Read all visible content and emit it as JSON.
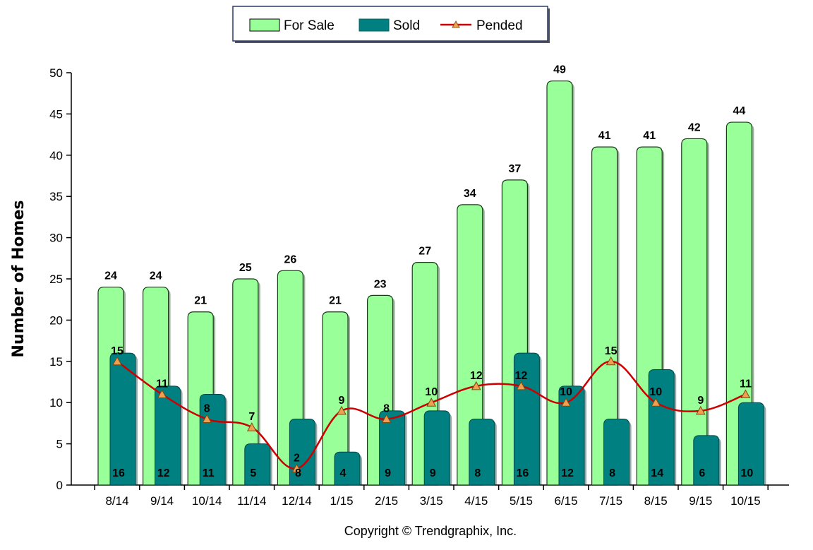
{
  "chart_data": {
    "type": "bar",
    "ylabel": "Number of Homes",
    "xlabel": "",
    "ylim": [
      0,
      50
    ],
    "yticks": [
      0,
      5,
      10,
      15,
      20,
      25,
      30,
      35,
      40,
      45,
      50
    ],
    "categories": [
      "8/14",
      "9/14",
      "10/14",
      "11/14",
      "12/14",
      "1/15",
      "2/15",
      "3/15",
      "4/15",
      "5/15",
      "6/15",
      "7/15",
      "8/15",
      "9/15",
      "10/15"
    ],
    "series": [
      {
        "name": "For Sale",
        "kind": "bar",
        "color": "#99ff99",
        "values": [
          24,
          24,
          21,
          25,
          26,
          21,
          23,
          27,
          34,
          37,
          49,
          41,
          41,
          42,
          44
        ]
      },
      {
        "name": "Sold",
        "kind": "bar",
        "color": "#008080",
        "values": [
          16,
          12,
          11,
          5,
          8,
          4,
          9,
          9,
          8,
          16,
          12,
          8,
          14,
          6,
          10
        ]
      },
      {
        "name": "Pended",
        "kind": "line",
        "color": "#cc0000",
        "marker_color": "#f0a050",
        "values": [
          15,
          11,
          8,
          7,
          2,
          9,
          8,
          10,
          12,
          12,
          10,
          15,
          10,
          9,
          11
        ]
      }
    ],
    "legend_position": "top-center",
    "grid": false
  },
  "footer": {
    "copyright": "Copyright © Trendgraphix, Inc."
  }
}
